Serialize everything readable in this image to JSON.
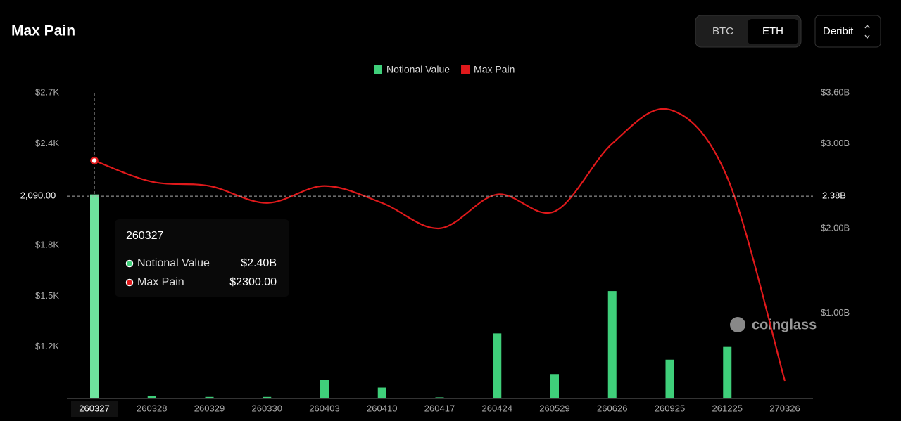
{
  "header": {
    "title": "Max Pain",
    "coins": [
      "BTC",
      "ETH"
    ],
    "selected_coin": "ETH",
    "exchange": "Deribit"
  },
  "chart_data": {
    "type": "bar-line",
    "categories": [
      "260327",
      "260328",
      "260329",
      "260330",
      "260403",
      "260410",
      "260417",
      "260424",
      "260529",
      "260626",
      "260925",
      "261225",
      "270326"
    ],
    "series": [
      {
        "name": "Notional Value",
        "color": "#3fcf7a",
        "type": "bar",
        "axis": "y2",
        "values": [
          2.4,
          0.025,
          0.01,
          0.01,
          0.21,
          0.12,
          0.005,
          0.76,
          0.28,
          1.26,
          0.45,
          0.6,
          0
        ]
      },
      {
        "name": "Max Pain",
        "color": "#e0191b",
        "type": "line",
        "values": [
          2300,
          2175,
          2150,
          2050,
          2150,
          2050,
          1900,
          2100,
          2000,
          2400,
          2600,
          2200,
          1000
        ]
      }
    ],
    "ylim": [
      900,
      2700
    ],
    "yticks": [
      {
        "value": 1200,
        "label": "$1.2K"
      },
      {
        "value": 1500,
        "label": "$1.5K"
      },
      {
        "value": 1800,
        "label": "$1.8K"
      },
      {
        "value": 2400,
        "label": "$2.4K"
      },
      {
        "value": 2700,
        "label": "$2.7K"
      }
    ],
    "y2lim": [
      0,
      3.6
    ],
    "y2ticks": [
      {
        "value": 1.0,
        "label": "$1.00B"
      },
      {
        "value": 2.0,
        "label": "$2.00B"
      },
      {
        "value": 3.0,
        "label": "$3.00B"
      },
      {
        "value": 3.6,
        "label": "$3.60B"
      }
    ],
    "crosshair": {
      "y": {
        "value": 2090,
        "label": "2,090.00"
      },
      "y2": {
        "value": 2.38,
        "label": "2.38B"
      }
    },
    "tooltip": {
      "rows": [
        {
          "name": "Notional Value",
          "value": "$2.40B"
        },
        {
          "name": "Max Pain",
          "value": "$2300.00"
        }
      ]
    },
    "watermark": "coinglass",
    "legend": "top"
  }
}
